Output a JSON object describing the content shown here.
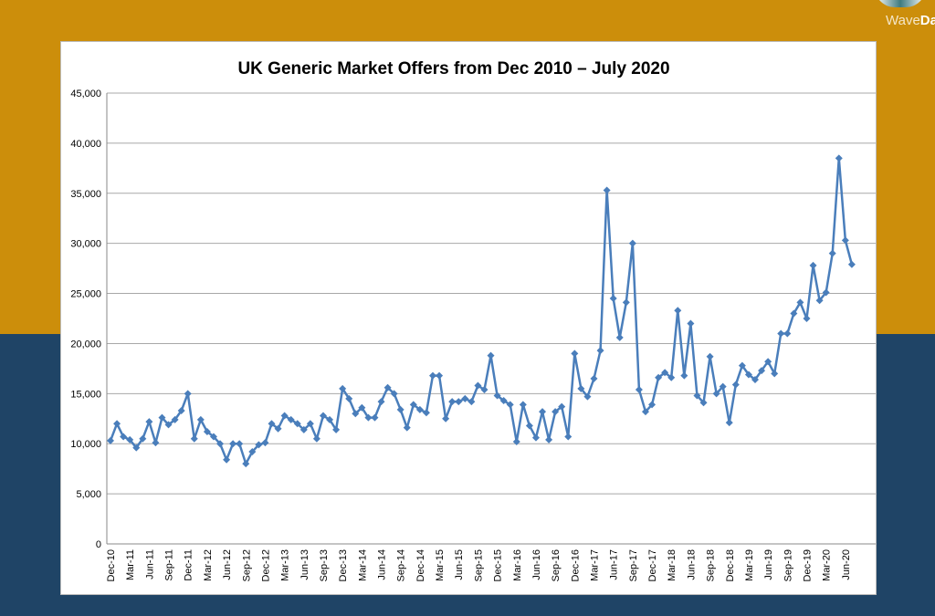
{
  "logo": {
    "text_light": "Wave",
    "text_bold": "Data"
  },
  "chart_data": {
    "type": "line",
    "title": "UK Generic Market Offers from Dec 2010 – July 2020",
    "xlabel": "",
    "ylabel": "",
    "ylim": [
      0,
      45000
    ],
    "yticks": [
      "0",
      "5,000",
      "10,000",
      "15,000",
      "20,000",
      "25,000",
      "30,000",
      "35,000",
      "40,000",
      "45,000"
    ],
    "grid": true,
    "legend": "none",
    "color": "#4A7EBB",
    "marker": "diamond",
    "categories": [
      "Dec-10",
      "Jan-11",
      "Feb-11",
      "Mar-11",
      "Apr-11",
      "May-11",
      "Jun-11",
      "Jul-11",
      "Aug-11",
      "Sep-11",
      "Oct-11",
      "Nov-11",
      "Dec-11",
      "Jan-12",
      "Feb-12",
      "Mar-12",
      "Apr-12",
      "May-12",
      "Jun-12",
      "Jul-12",
      "Aug-12",
      "Sep-12",
      "Oct-12",
      "Nov-12",
      "Dec-12",
      "Jan-13",
      "Feb-13",
      "Mar-13",
      "Apr-13",
      "May-13",
      "Jun-13",
      "Jul-13",
      "Aug-13",
      "Sep-13",
      "Oct-13",
      "Nov-13",
      "Dec-13",
      "Jan-14",
      "Feb-14",
      "Mar-14",
      "Apr-14",
      "May-14",
      "Jun-14",
      "Jul-14",
      "Aug-14",
      "Sep-14",
      "Oct-14",
      "Nov-14",
      "Dec-14",
      "Jan-15",
      "Feb-15",
      "Mar-15",
      "Apr-15",
      "May-15",
      "Jun-15",
      "Jul-15",
      "Aug-15",
      "Sep-15",
      "Oct-15",
      "Nov-15",
      "Dec-15",
      "Jan-16",
      "Feb-16",
      "Mar-16",
      "Apr-16",
      "May-16",
      "Jun-16",
      "Jul-16",
      "Aug-16",
      "Sep-16",
      "Oct-16",
      "Nov-16",
      "Dec-16",
      "Jan-17",
      "Feb-17",
      "Mar-17",
      "Apr-17",
      "May-17",
      "Jun-17",
      "Jul-17",
      "Aug-17",
      "Sep-17",
      "Oct-17",
      "Nov-17",
      "Dec-17",
      "Jan-18",
      "Feb-18",
      "Mar-18",
      "Apr-18",
      "May-18",
      "Jun-18",
      "Jul-18",
      "Aug-18",
      "Sep-18",
      "Oct-18",
      "Nov-18",
      "Dec-18",
      "Jan-19",
      "Feb-19",
      "Mar-19",
      "Apr-19",
      "May-19",
      "Jun-19",
      "Jul-19",
      "Aug-19",
      "Sep-19",
      "Oct-19",
      "Nov-19",
      "Dec-19",
      "Jan-20",
      "Feb-20",
      "Mar-20",
      "Apr-20",
      "May-20",
      "Jun-20",
      "Jul-20"
    ],
    "values": [
      10300,
      12000,
      10700,
      10400,
      9600,
      10500,
      12200,
      10100,
      12600,
      11900,
      12400,
      13300,
      15000,
      10500,
      12400,
      11200,
      10700,
      10000,
      8400,
      10000,
      10000,
      8000,
      9200,
      9900,
      10100,
      12000,
      11500,
      12800,
      12400,
      12000,
      11400,
      12000,
      10500,
      12800,
      12400,
      11400,
      15500,
      14500,
      13000,
      13600,
      12600,
      12600,
      14200,
      15600,
      15000,
      13400,
      11600,
      13900,
      13400,
      13100,
      16800,
      16800,
      12500,
      14200,
      14200,
      14500,
      14200,
      15800,
      15400,
      18800,
      14800,
      14300,
      13900,
      10200,
      13900,
      11800,
      10600,
      13200,
      10400,
      13200,
      13700,
      10700,
      19000,
      15500,
      14700,
      16500,
      19300,
      35300,
      24500,
      20600,
      24100,
      30000,
      15400,
      13200,
      13900,
      16600,
      17100,
      16600,
      23300,
      16800,
      22000,
      14800,
      14100,
      18700,
      15000,
      15700,
      12100,
      15900,
      17800,
      16900,
      16400,
      17300,
      18200,
      17000,
      21000,
      21000,
      23000,
      24100,
      22500,
      27800,
      24300,
      25100,
      29000,
      38500,
      30300,
      27900
    ]
  }
}
